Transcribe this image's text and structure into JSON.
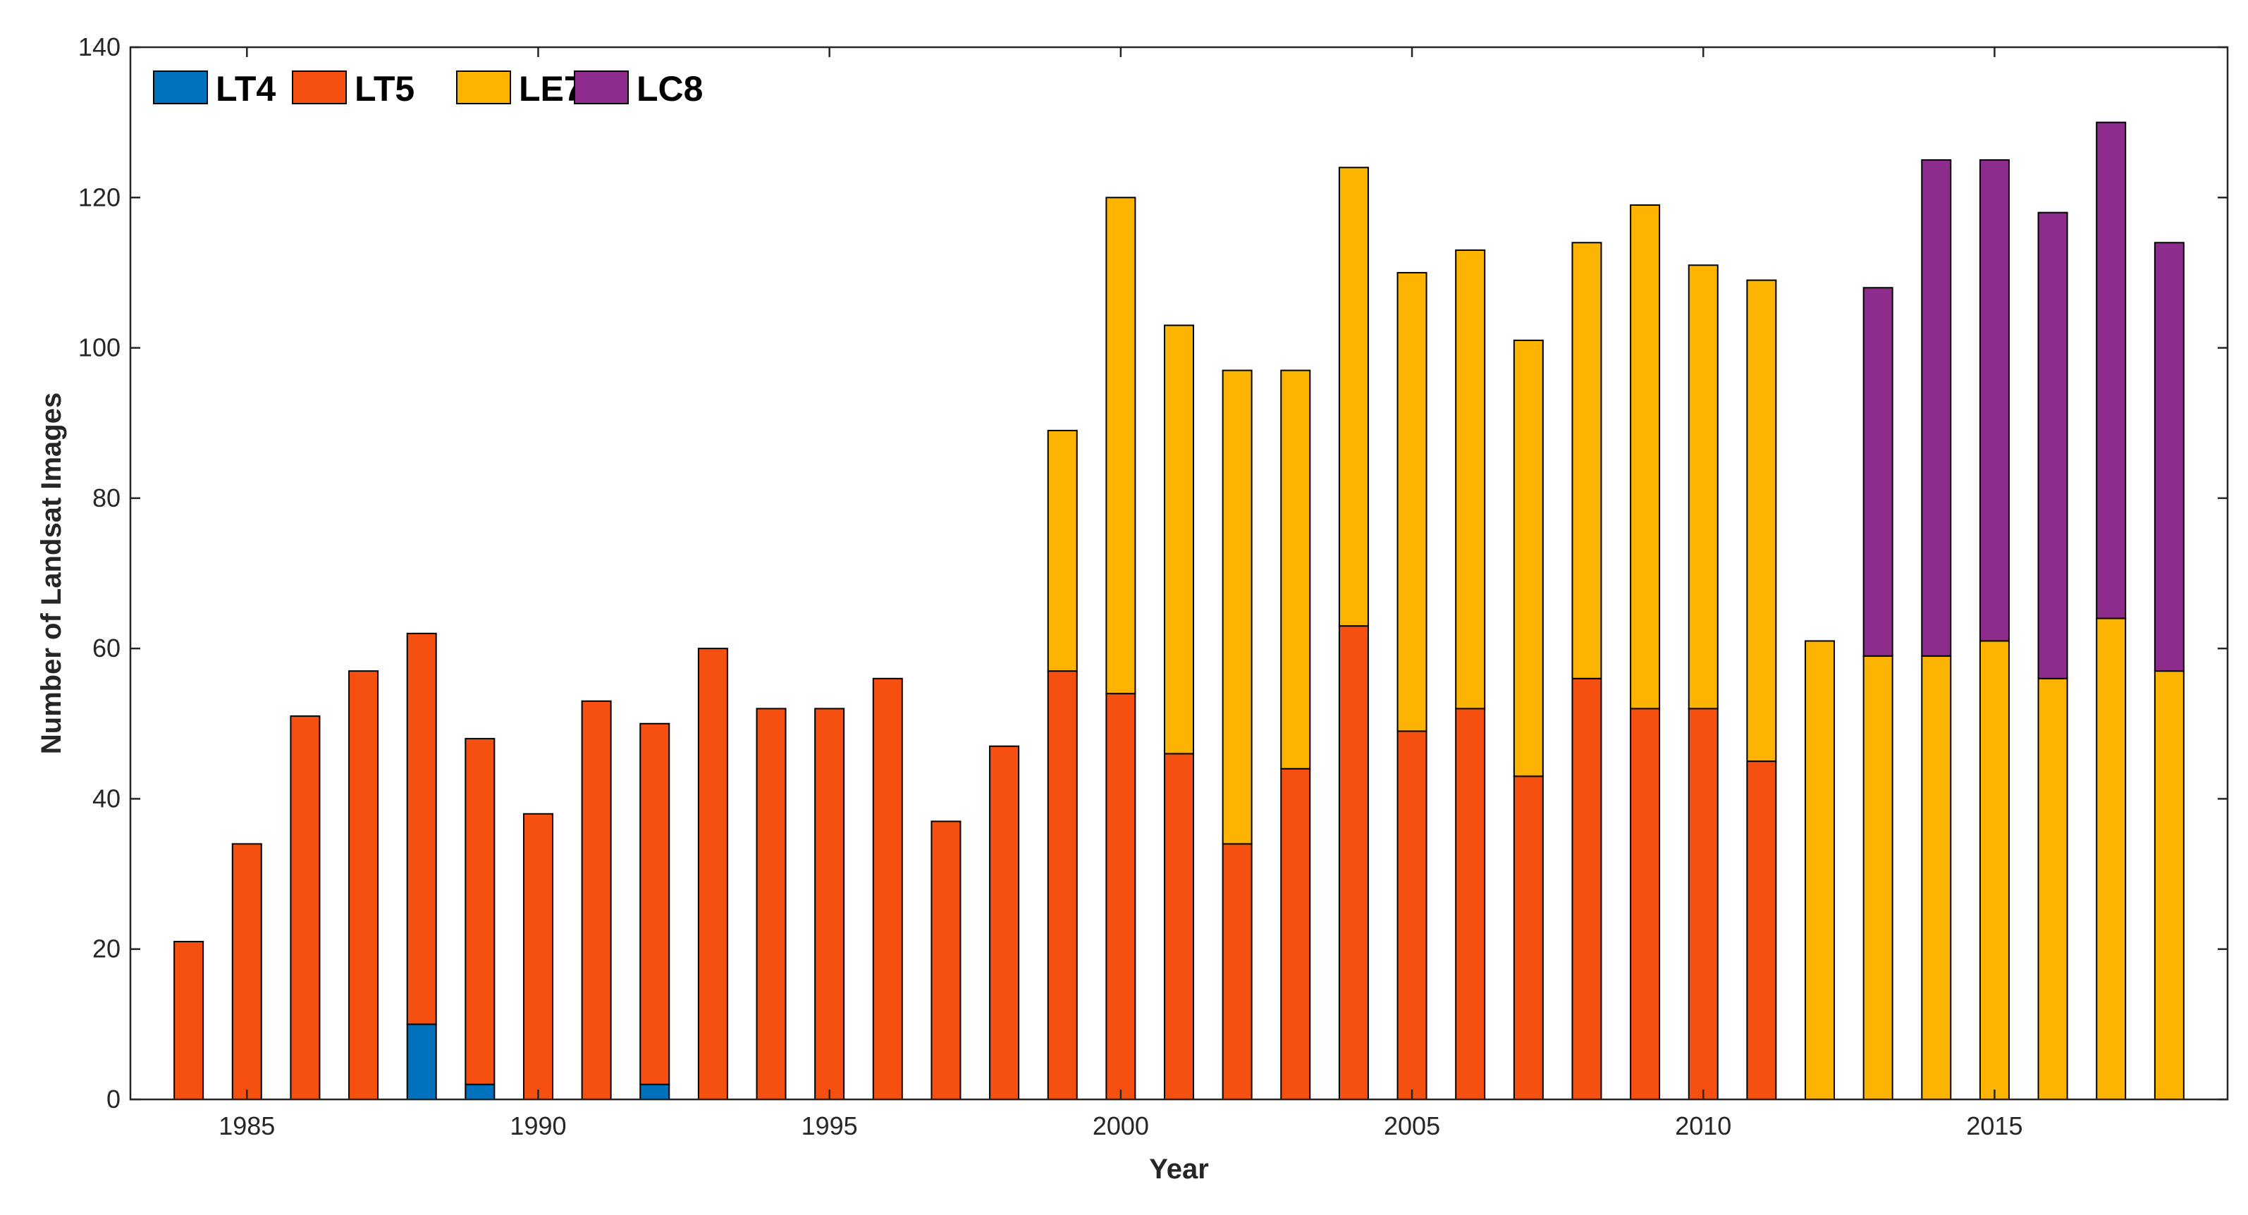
{
  "chart_data": {
    "type": "bar",
    "stacked": true,
    "title": "",
    "xlabel": "Year",
    "ylabel": "Number of Landsat Images",
    "xlim": [
      1983,
      2019
    ],
    "ylim": [
      0,
      140
    ],
    "xticks": [
      1985,
      1990,
      1995,
      2000,
      2005,
      2010,
      2015
    ],
    "yticks": [
      0,
      20,
      40,
      60,
      80,
      100,
      120,
      140
    ],
    "grid": false,
    "legend_position": "top-left",
    "categories": [
      1984,
      1985,
      1986,
      1987,
      1988,
      1989,
      1990,
      1991,
      1992,
      1993,
      1994,
      1995,
      1996,
      1997,
      1998,
      1999,
      2000,
      2001,
      2002,
      2003,
      2004,
      2005,
      2006,
      2007,
      2008,
      2009,
      2010,
      2011,
      2012,
      2013,
      2014,
      2015,
      2016,
      2017,
      2018
    ],
    "series": [
      {
        "name": "LT4",
        "color": "#0072BD",
        "values": [
          0,
          0,
          0,
          0,
          10,
          2,
          0,
          0,
          2,
          0,
          0,
          0,
          0,
          0,
          0,
          0,
          0,
          0,
          0,
          0,
          0,
          0,
          0,
          0,
          0,
          0,
          0,
          0,
          0,
          0,
          0,
          0,
          0,
          0,
          0
        ]
      },
      {
        "name": "LT5",
        "color": "#F5500F",
        "values": [
          21,
          34,
          51,
          57,
          52,
          46,
          38,
          53,
          48,
          60,
          52,
          52,
          56,
          37,
          47,
          57,
          54,
          46,
          34,
          44,
          63,
          49,
          52,
          43,
          56,
          52,
          52,
          45,
          0,
          0,
          0,
          0,
          0,
          0,
          0
        ]
      },
      {
        "name": "LE7",
        "color": "#FDB400",
        "values": [
          0,
          0,
          0,
          0,
          0,
          0,
          0,
          0,
          0,
          0,
          0,
          0,
          0,
          0,
          0,
          32,
          66,
          57,
          63,
          53,
          61,
          61,
          61,
          58,
          58,
          67,
          59,
          64,
          61,
          59,
          59,
          61,
          56,
          64,
          57
        ]
      },
      {
        "name": "LC8",
        "color": "#8E2C8E",
        "values": [
          0,
          0,
          0,
          0,
          0,
          0,
          0,
          0,
          0,
          0,
          0,
          0,
          0,
          0,
          0,
          0,
          0,
          0,
          0,
          0,
          0,
          0,
          0,
          0,
          0,
          0,
          0,
          0,
          0,
          49,
          66,
          64,
          62,
          66,
          57
        ]
      }
    ]
  }
}
